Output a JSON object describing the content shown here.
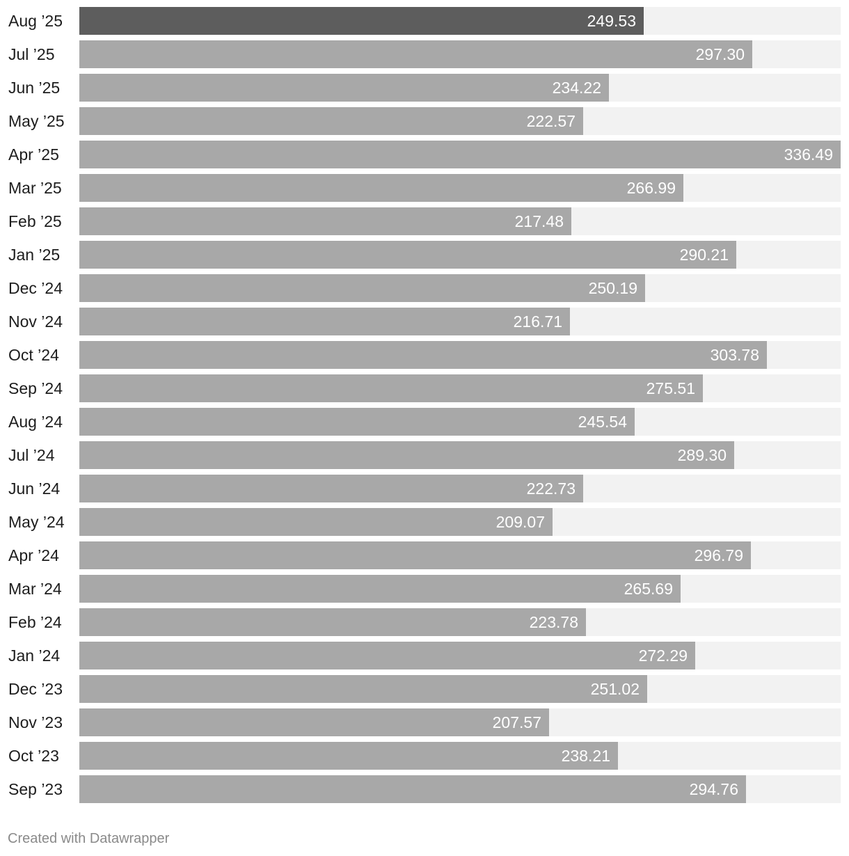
{
  "chart_data": {
    "type": "bar",
    "orientation": "horizontal",
    "categories": [
      "Aug ’25",
      "Jul ’25",
      "Jun ’25",
      "May ’25",
      "Apr ’25",
      "Mar ’25",
      "Feb ’25",
      "Jan ’25",
      "Dec ’24",
      "Nov ’24",
      "Oct ’24",
      "Sep ’24",
      "Aug ’24",
      "Jul ’24",
      "Jun ’24",
      "May ’24",
      "Apr ’24",
      "Mar ’24",
      "Feb ’24",
      "Jan ’24",
      "Dec ’23",
      "Nov ’23",
      "Oct ’23",
      "Sep ’23"
    ],
    "values": [
      249.53,
      297.3,
      234.22,
      222.57,
      336.49,
      266.99,
      217.48,
      290.21,
      250.19,
      216.71,
      303.78,
      275.51,
      245.54,
      289.3,
      222.73,
      209.07,
      296.79,
      265.69,
      223.78,
      272.29,
      251.02,
      207.57,
      238.21,
      294.76
    ],
    "value_labels": [
      "249.53",
      "297.30",
      "234.22",
      "222.57",
      "336.49",
      "266.99",
      "217.48",
      "290.21",
      "250.19",
      "216.71",
      "303.78",
      "275.51",
      "245.54",
      "289.30",
      "222.73",
      "209.07",
      "296.79",
      "265.69",
      "223.78",
      "272.29",
      "251.02",
      "207.57",
      "238.21",
      "294.76"
    ],
    "highlight_index": 0,
    "xlim": [
      0,
      336.49
    ],
    "colors": {
      "bar": "#a8a8a8",
      "highlight": "#5d5d5d",
      "track": "#f2f2f2",
      "value_text": "#ffffff",
      "label_text": "#1d1d1d"
    },
    "title": "",
    "xlabel": "",
    "ylabel": "",
    "grid": false,
    "legend": "none"
  },
  "footer": {
    "credit": "Created with Datawrapper"
  }
}
